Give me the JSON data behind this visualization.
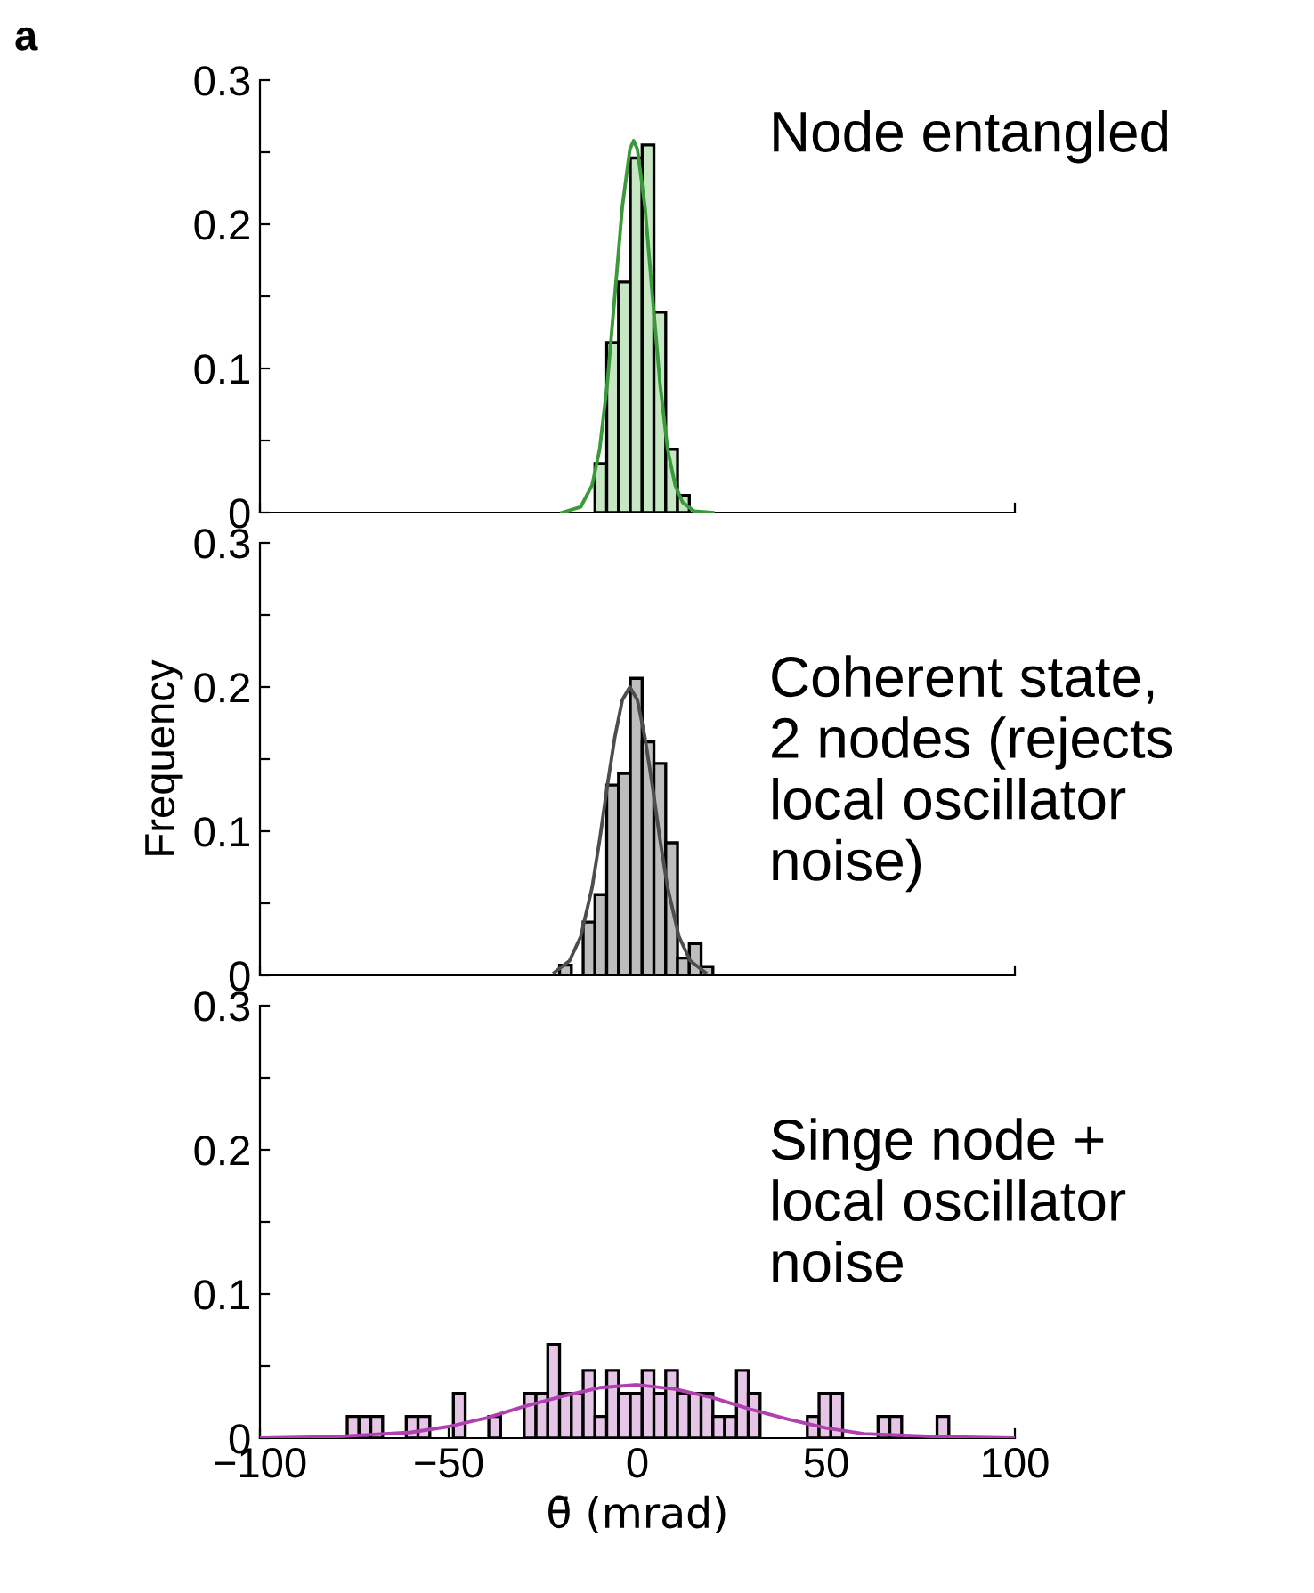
{
  "chart_data": [
    {
      "type": "histogram",
      "annotations": [
        "a",
        "Node entangled"
      ],
      "xlim": [
        -100,
        100
      ],
      "xticks": [
        {
          "value": -100,
          "label": null
        },
        {
          "value": 100,
          "label": null
        }
      ],
      "ylim": [
        0,
        0.3
      ],
      "yticks": [
        0,
        {
          "value": 0.05,
          "label": null
        },
        0.1,
        {
          "value": 0.15,
          "label": null
        },
        0.2,
        {
          "value": 0.25,
          "label": null
        },
        0.3
      ],
      "tick_labels": "y",
      "grid": false,
      "legend": false,
      "series": [
        {
          "color": "#c6e6c4",
          "bins": [
            -11.25,
            -8.125,
            -5,
            -1.875,
            1.25,
            4.375,
            7.5,
            10.625,
            13.75
          ],
          "values": [
            0.034,
            0.118,
            0.16,
            0.246,
            0.255,
            0.139,
            0.044,
            0.012
          ]
        },
        {
          "type": "line",
          "color": "#3a9a3a",
          "x": [
            -20,
            -15,
            -12,
            -10,
            -8,
            -6,
            -4,
            -2,
            -1,
            0,
            2,
            4,
            6,
            8,
            10,
            12,
            15,
            20
          ],
          "values": [
            0,
            0.004,
            0.019,
            0.044,
            0.089,
            0.15,
            0.212,
            0.252,
            0.258,
            0.252,
            0.212,
            0.15,
            0.089,
            0.044,
            0.019,
            0.007,
            0.001,
            0
          ]
        }
      ]
    },
    {
      "type": "histogram",
      "ylabel": "Frequency",
      "annotations": [
        "Coherent state,\n2 nodes (rejects\nlocal oscillator\nnoise)"
      ],
      "xlim": [
        -100,
        100
      ],
      "xticks": [
        {
          "value": -100,
          "label": null
        },
        {
          "value": 100,
          "label": null
        }
      ],
      "ylim": [
        0,
        0.3
      ],
      "yticks": [
        0,
        {
          "value": 0.05,
          "label": null
        },
        0.1,
        {
          "value": 0.15,
          "label": null
        },
        0.2,
        {
          "value": 0.25,
          "label": null
        },
        0.3
      ],
      "tick_labels": "y",
      "grid": false,
      "legend": false,
      "series": [
        {
          "color": "#bdbdbd",
          "bins": [
            -20.625,
            -17.5,
            -14.375,
            -11.25,
            -8.125,
            -5,
            -1.875,
            1.25,
            4.375,
            7.5,
            10.625,
            13.75,
            16.875,
            20
          ],
          "values": [
            0.007,
            0,
            0.037,
            0.056,
            0.132,
            0.14,
            0.206,
            0.162,
            0.147,
            0.092,
            0.012,
            0.022,
            0.006
          ]
        },
        {
          "type": "line",
          "color": "#4d4d4d",
          "x": [
            -22,
            -18,
            -15,
            -12,
            -10,
            -8,
            -6,
            -4,
            -2,
            0,
            2,
            4,
            6,
            8,
            11,
            14,
            18
          ],
          "values": [
            0.002,
            0.01,
            0.027,
            0.061,
            0.094,
            0.131,
            0.165,
            0.191,
            0.2,
            0.191,
            0.165,
            0.131,
            0.094,
            0.061,
            0.027,
            0.01,
            0.002
          ]
        }
      ]
    },
    {
      "type": "histogram",
      "xlabel": "θ̄ (mrad)",
      "annotations": [
        "Singe node +\nlocal oscillator\nnoise"
      ],
      "xlim": [
        -100,
        100
      ],
      "xticks": [
        {
          "value": -100,
          "label": "−100"
        },
        {
          "value": -50,
          "label": "−50"
        },
        0,
        50,
        100
      ],
      "ylim": [
        0,
        0.3
      ],
      "yticks": [
        0,
        {
          "value": 0.05,
          "label": null
        },
        0.1,
        {
          "value": 0.15,
          "label": null
        },
        0.2,
        {
          "value": 0.25,
          "label": null
        },
        0.3
      ],
      "grid": false,
      "legend": false,
      "series": [
        {
          "color": "#e6c6e6",
          "bins": [
            -76.875,
            -73.75,
            -70.625,
            -67.5,
            -64.375,
            -61.25,
            -58.125,
            -55,
            -51.875,
            -48.75,
            -45.625,
            -42.5,
            -39.375,
            -36.25,
            -33.125,
            -30,
            -26.875,
            -23.75,
            -20.625,
            -17.5,
            -14.375,
            -11.25,
            -8.125,
            -5,
            -1.875,
            1.25,
            4.375,
            7.5,
            10.625,
            13.75,
            16.875,
            20,
            23.125,
            26.25,
            29.375,
            32.5,
            35.625,
            38.75,
            41.875,
            45,
            48.125,
            51.25,
            54.375,
            57.5,
            60.625,
            63.75,
            66.875,
            70,
            73.125,
            76.25,
            79.375,
            82.5
          ],
          "values": [
            0.015,
            0.015,
            0.015,
            0,
            0,
            0.015,
            0.015,
            0,
            0,
            0.031,
            0,
            0,
            0.015,
            0,
            0,
            0.031,
            0.031,
            0.065,
            0.031,
            0.031,
            0.047,
            0.015,
            0.047,
            0.031,
            0.031,
            0.047,
            0.031,
            0.047,
            0.031,
            0.031,
            0.031,
            0.015,
            0.015,
            0.047,
            0.031,
            0,
            0,
            0,
            0,
            0.015,
            0.031,
            0.031,
            0,
            0,
            0,
            0.015,
            0.015,
            0,
            0,
            0,
            0.015
          ]
        },
        {
          "type": "line",
          "color": "#b040b0",
          "x": [
            -100,
            -80,
            -60,
            -50,
            -40,
            -30,
            -20,
            -10,
            0,
            10,
            20,
            30,
            40,
            50,
            60,
            80,
            100
          ],
          "values": [
            0,
            0.001,
            0.004,
            0.008,
            0.014,
            0.022,
            0.029,
            0.035,
            0.037,
            0.034,
            0.028,
            0.02,
            0.013,
            0.007,
            0.003,
            0.001,
            0
          ]
        }
      ]
    }
  ]
}
